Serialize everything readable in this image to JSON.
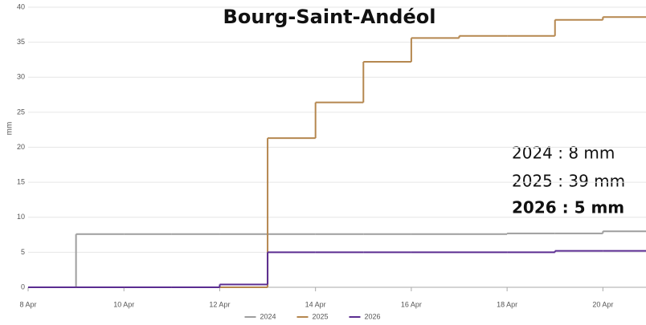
{
  "chart_data": {
    "type": "step",
    "title": "Bourg-Saint-Andéol",
    "y_label": "mm",
    "x": [
      8,
      9,
      10,
      11,
      12,
      13,
      14,
      15,
      16,
      17,
      18,
      19,
      20
    ],
    "xlim": [
      8,
      20.9
    ],
    "xticks": [
      {
        "value": 8,
        "label": "8 Apr"
      },
      {
        "value": 10,
        "label": "10 Apr"
      },
      {
        "value": 12,
        "label": "12 Apr"
      },
      {
        "value": 14,
        "label": "14 Apr"
      },
      {
        "value": 16,
        "label": "16 Apr"
      },
      {
        "value": 18,
        "label": "18 Apr"
      },
      {
        "value": 20,
        "label": "20 Apr"
      }
    ],
    "ylim": [
      0,
      40
    ],
    "yticks": [
      0,
      5,
      10,
      15,
      20,
      25,
      30,
      35,
      40
    ],
    "grid": true,
    "legend": "bottom",
    "series": [
      {
        "name": "2024",
        "color": "#9e9e9e",
        "values": [
          0,
          7.6,
          7.6,
          7.6,
          7.6,
          7.6,
          7.6,
          7.6,
          7.6,
          7.6,
          7.7,
          7.7,
          8.0
        ]
      },
      {
        "name": "2025",
        "color": "#b5874f",
        "values": [
          0,
          0,
          0,
          0,
          0,
          21.3,
          26.4,
          32.2,
          35.6,
          35.9,
          35.9,
          38.2,
          38.6
        ]
      },
      {
        "name": "2026",
        "color": "#5b2d91",
        "values": [
          0,
          0,
          0,
          0,
          0.4,
          5.0,
          5.0,
          5.0,
          5.0,
          5.0,
          5.0,
          5.2,
          5.2
        ]
      }
    ],
    "annotations": [
      "2024 : 8 mm",
      "2025 : 39 mm",
      "2026 : 5 mm"
    ]
  }
}
